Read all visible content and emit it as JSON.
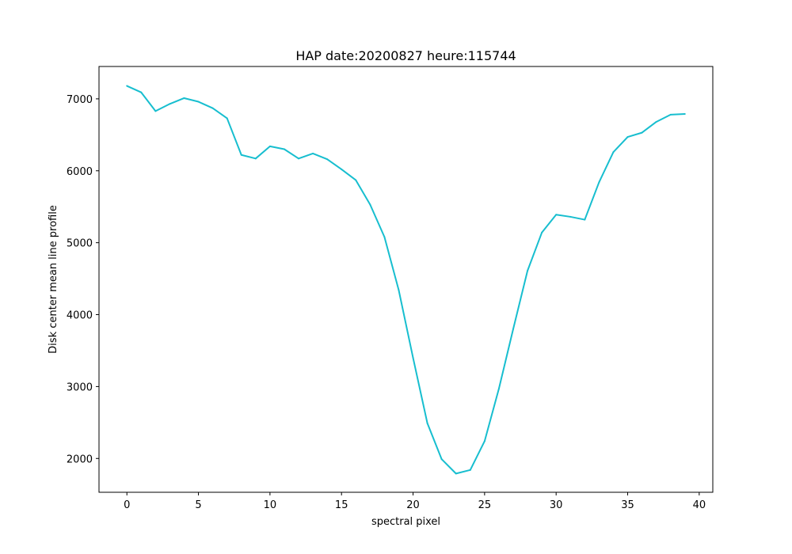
{
  "chart_data": {
    "type": "line",
    "title": "HAP date:20200827 heure:115744",
    "xlabel": "spectral pixel",
    "ylabel": "Disk center mean line profile",
    "xlim": [
      -1.95,
      40.95
    ],
    "ylim": [
      1530,
      7450
    ],
    "xticks": [
      0,
      5,
      10,
      15,
      20,
      25,
      30,
      35,
      40
    ],
    "yticks": [
      2000,
      3000,
      4000,
      5000,
      6000,
      7000
    ],
    "grid": false,
    "series": [
      {
        "color": "#17becf",
        "x": [
          0,
          1,
          2,
          3,
          4,
          5,
          6,
          7,
          8,
          9,
          10,
          11,
          12,
          13,
          14,
          15,
          16,
          17,
          18,
          19,
          20,
          21,
          22,
          23,
          24,
          25,
          26,
          27,
          28,
          29,
          30,
          31,
          32,
          33,
          34,
          35,
          36,
          37,
          38,
          39
        ],
        "y": [
          7180,
          7090,
          6830,
          6930,
          7010,
          6960,
          6870,
          6730,
          6220,
          6170,
          6340,
          6300,
          6170,
          6240,
          6160,
          6020,
          5870,
          5530,
          5080,
          4340,
          3400,
          2490,
          1990,
          1790,
          1840,
          2240,
          2970,
          3800,
          4610,
          5140,
          5390,
          5360,
          5320,
          5840,
          6260,
          6470,
          6530,
          6680,
          6780,
          6790
        ]
      }
    ]
  }
}
